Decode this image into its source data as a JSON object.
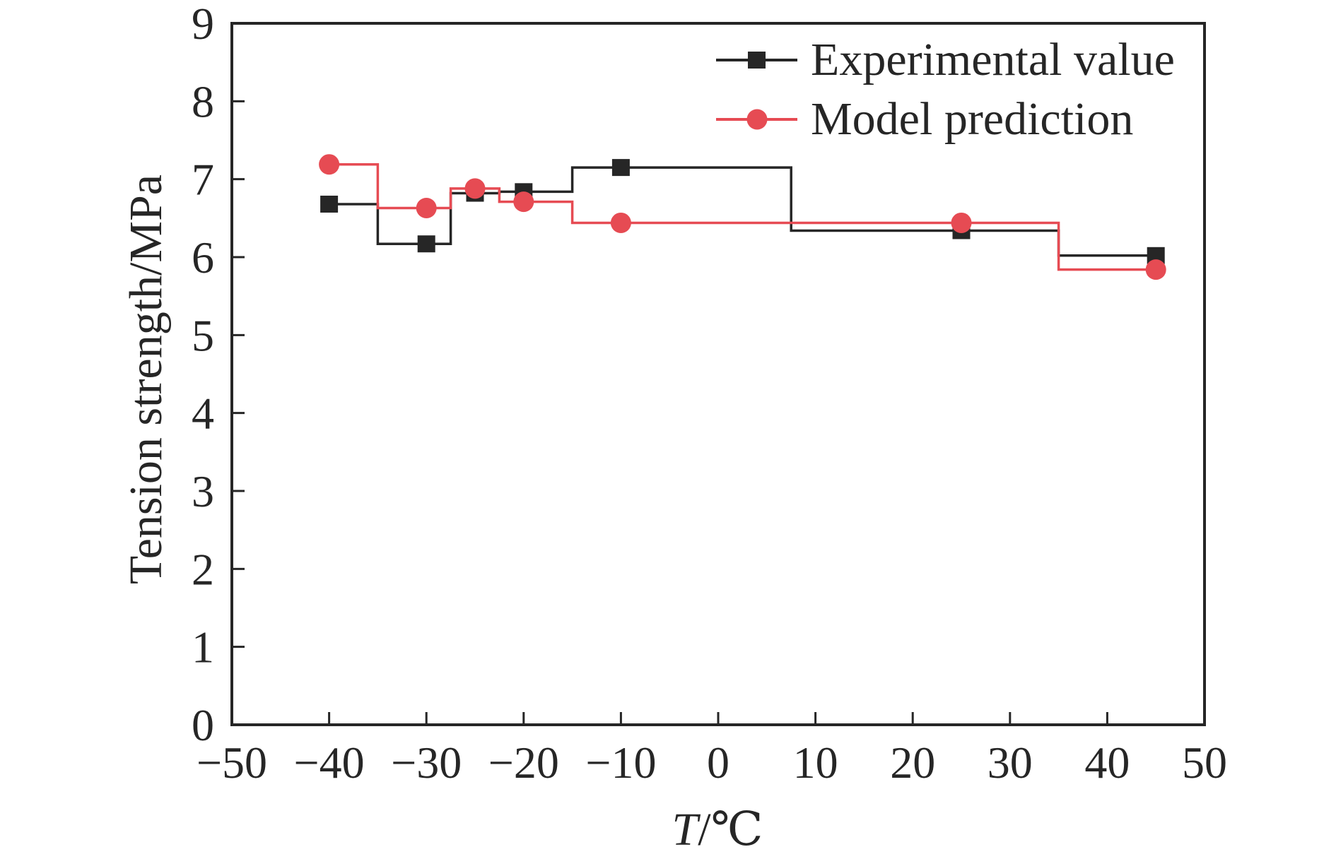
{
  "chart_data": {
    "type": "line",
    "step": "mid",
    "title": "",
    "xlabel": "T/℃",
    "xlabel_var": "T",
    "xlabel_unit": "/℃",
    "ylabel": "Tension strength/MPa",
    "xlim": [
      -50,
      50
    ],
    "ylim": [
      0,
      9
    ],
    "grid": false,
    "legend_position": "top-right",
    "x_ticks": [
      -50,
      -40,
      -30,
      -20,
      -10,
      0,
      10,
      20,
      30,
      40,
      50
    ],
    "x_tick_labels": [
      "−50",
      "−40",
      "−30",
      "−20",
      "−10",
      "0",
      "10",
      "20",
      "30",
      "40",
      "50"
    ],
    "y_ticks": [
      0,
      1,
      2,
      3,
      4,
      5,
      6,
      7,
      8,
      9
    ],
    "y_tick_labels": [
      "0",
      "1",
      "2",
      "3",
      "4",
      "5",
      "6",
      "7",
      "8",
      "9"
    ],
    "x": [
      -40,
      -30,
      -25,
      -20,
      -10,
      25,
      45
    ],
    "series": [
      {
        "name": "Experimental value",
        "marker": "square",
        "color": "#262626",
        "values": [
          6.68,
          6.17,
          6.82,
          6.84,
          7.15,
          6.34,
          6.02
        ]
      },
      {
        "name": "Model prediction",
        "marker": "circle",
        "color": "#E64B53",
        "values": [
          7.19,
          6.63,
          6.88,
          6.71,
          6.44,
          6.44,
          5.84
        ]
      }
    ]
  }
}
